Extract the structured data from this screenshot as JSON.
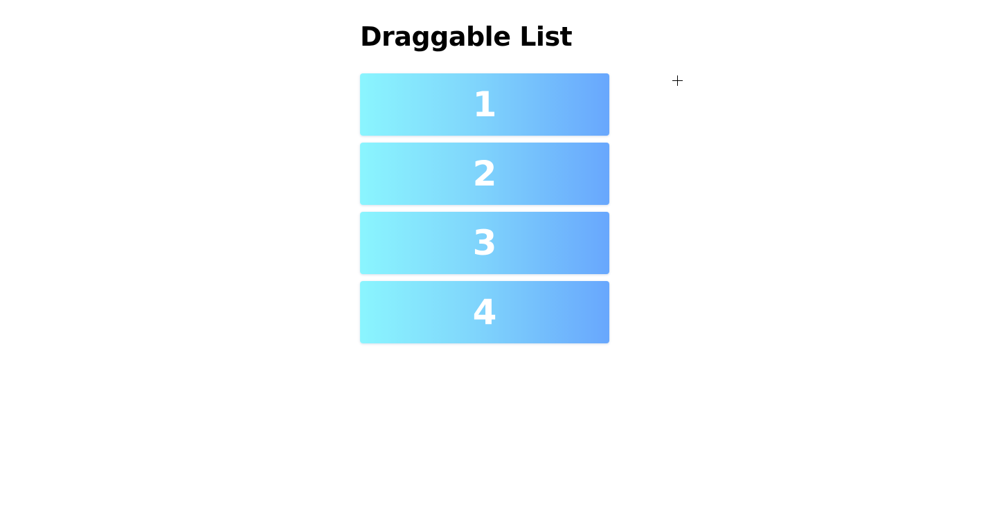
{
  "page": {
    "title": "Draggable List"
  },
  "list": {
    "items": [
      {
        "label": "1"
      },
      {
        "label": "2"
      },
      {
        "label": "3"
      },
      {
        "label": "4"
      }
    ]
  },
  "colors": {
    "gradient_start": "#8af5fe",
    "gradient_end": "#68a7fd",
    "item_text": "#ffffff",
    "title_text": "#000000",
    "background": "#ffffff"
  },
  "icons": {
    "cursor": "crosshair-cursor-icon"
  }
}
